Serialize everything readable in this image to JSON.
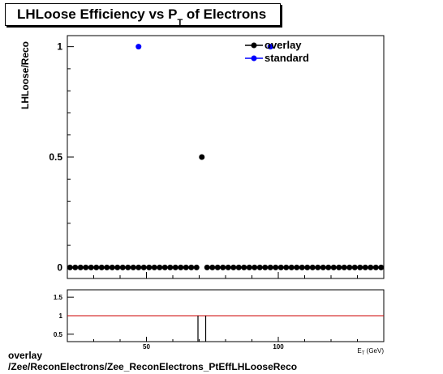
{
  "chart_data": [
    {
      "type": "scatter",
      "title_main": "LHLoose Efficiency vs P",
      "title_sub": "T",
      "title_rest": " of Electrons",
      "ylabel": "LHLoose/Reco",
      "xlabel": "E_T (GeV)",
      "xlim": [
        20,
        140
      ],
      "ylim": [
        -0.05,
        1.05
      ],
      "ytick_labels": [
        "0",
        "0.5",
        "1"
      ],
      "ytick_values": [
        0,
        0.5,
        1
      ],
      "xtick_labels": [
        "50",
        "100"
      ],
      "xtick_values": [
        50,
        100
      ],
      "grid": false,
      "legend_position": "top-right",
      "series": [
        {
          "name": "overlay",
          "color": "#000000",
          "x": [
            21,
            23,
            25,
            27,
            29,
            31,
            33,
            35,
            37,
            39,
            41,
            43,
            45,
            47,
            49,
            51,
            53,
            55,
            57,
            59,
            61,
            63,
            65,
            67,
            69,
            71,
            73,
            75,
            77,
            79,
            81,
            83,
            85,
            87,
            89,
            91,
            93,
            95,
            97,
            99,
            101,
            103,
            105,
            107,
            109,
            111,
            113,
            115,
            117,
            119,
            121,
            123,
            125,
            127,
            129,
            131,
            133,
            135,
            137,
            139
          ],
          "y": [
            0,
            0,
            0,
            0,
            0,
            0,
            0,
            0,
            0,
            0,
            0,
            0,
            0,
            0,
            0,
            0,
            0,
            0,
            0,
            0,
            0,
            0,
            0,
            0,
            0,
            0.5,
            0,
            0,
            0,
            0,
            0,
            0,
            0,
            0,
            0,
            0,
            0,
            0,
            0,
            0,
            0,
            0,
            0,
            0,
            0,
            0,
            0,
            0,
            0,
            0,
            0,
            0,
            0,
            0,
            0,
            0,
            0,
            0,
            0,
            0
          ]
        },
        {
          "name": "standard",
          "color": "#0000ff",
          "x": [
            47,
            97
          ],
          "y": [
            1,
            1
          ]
        }
      ]
    },
    {
      "type": "line",
      "ylim": [
        0.3,
        1.7
      ],
      "xlim": [
        20,
        140
      ],
      "ytick_labels": [
        "0.5",
        "1",
        "1.5"
      ],
      "ytick_values": [
        0.5,
        1,
        1.5
      ],
      "xtick_labels": [
        "50",
        "100"
      ],
      "xtick_values": [
        50,
        100
      ],
      "reference_line": 1,
      "reference_color": "#cc0000",
      "ratio_x": [
        69,
        71,
        73
      ],
      "ratio_y": [
        1,
        0,
        1
      ]
    }
  ],
  "footer": {
    "line1": "overlay",
    "line2": "/Zee/ReconElectrons/Zee_ReconElectrons_PtEffLHLooseReco"
  }
}
